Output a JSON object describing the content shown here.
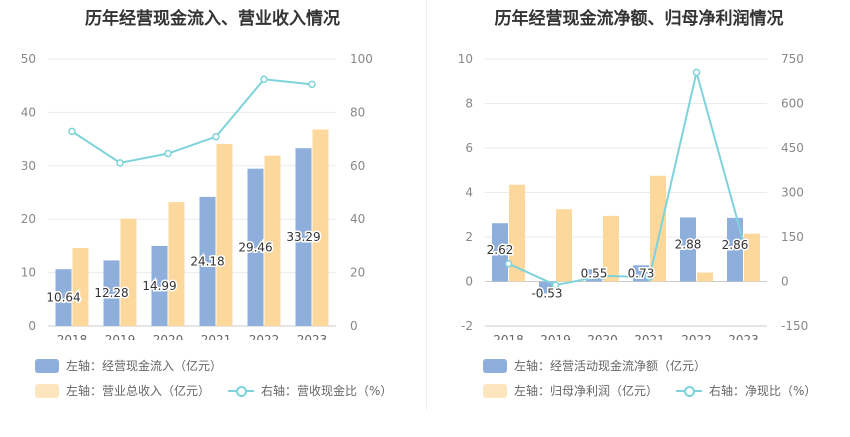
{
  "charts": {
    "left": {
      "title": "历年经营现金流入、营业收入情况",
      "legend": {
        "s1": "左轴：经营现金流入（亿元）",
        "s2": "左轴：营业总收入（亿元）",
        "s3": "右轴：营收现金比（%）"
      }
    },
    "right": {
      "title": "历年经营现金流净额、归母净利润情况",
      "legend": {
        "s1": "左轴：经营活动现金流净额（亿元）",
        "s2": "左轴：归母净利润（亿元）",
        "s3": "右轴：净现比（%）"
      }
    }
  },
  "chart_data": [
    {
      "type": "bar",
      "title": "历年经营现金流入、营业收入情况",
      "categories": [
        "2018",
        "2019",
        "2020",
        "2021",
        "2022",
        "2023"
      ],
      "y_left": {
        "min": 0,
        "max": 50,
        "ticks": [
          "0",
          "10",
          "20",
          "30",
          "40",
          "50"
        ]
      },
      "y_right": {
        "min": 0,
        "max": 100,
        "ticks": [
          "0",
          "20",
          "40",
          "60",
          "80",
          "100"
        ]
      },
      "series": [
        {
          "name": "经营现金流入（亿元）",
          "axis": "left",
          "kind": "bar",
          "color": "#8eaedc",
          "values": [
            10.64,
            12.28,
            14.99,
            24.18,
            29.46,
            33.29
          ],
          "labels": [
            "10.64",
            "12.28",
            "14.99",
            "24.18",
            "29.46",
            "33.29"
          ]
        },
        {
          "name": "营业总收入（亿元）",
          "axis": "left",
          "kind": "bar",
          "color": "#fdd89c",
          "values": [
            14.6,
            20.1,
            23.2,
            34.1,
            31.9,
            36.8
          ]
        },
        {
          "name": "营收现金比（%）",
          "axis": "right",
          "kind": "line",
          "color": "#7ed3da",
          "values": [
            72.9,
            61.1,
            64.6,
            70.9,
            92.4,
            90.5
          ]
        }
      ]
    },
    {
      "type": "bar",
      "title": "历年经营现金流净额、归母净利润情况",
      "categories": [
        "2018",
        "2019",
        "2020",
        "2021",
        "2022",
        "2023"
      ],
      "y_left": {
        "min": -2,
        "max": 10,
        "ticks": [
          "-2",
          "0",
          "2",
          "4",
          "6",
          "8",
          "10"
        ]
      },
      "y_right": {
        "min": -150,
        "max": 750,
        "ticks": [
          "-150",
          "0",
          "150",
          "300",
          "450",
          "600",
          "750"
        ]
      },
      "series": [
        {
          "name": "经营活动现金流净额（亿元）",
          "axis": "left",
          "kind": "bar",
          "color": "#8eaedc",
          "values": [
            2.62,
            -0.53,
            0.55,
            0.73,
            2.88,
            2.86
          ],
          "labels": [
            "2.62",
            "-0.53",
            "0.55",
            "0.73",
            "2.88",
            "2.86"
          ]
        },
        {
          "name": "归母净利润（亿元）",
          "axis": "left",
          "kind": "bar",
          "color": "#fdd89c",
          "values": [
            4.35,
            3.25,
            2.95,
            4.75,
            0.4,
            2.15
          ]
        },
        {
          "name": "净现比（%）",
          "axis": "right",
          "kind": "line",
          "color": "#7ed3da",
          "values": [
            60,
            -12,
            19,
            15,
            705,
            133
          ]
        }
      ]
    }
  ]
}
